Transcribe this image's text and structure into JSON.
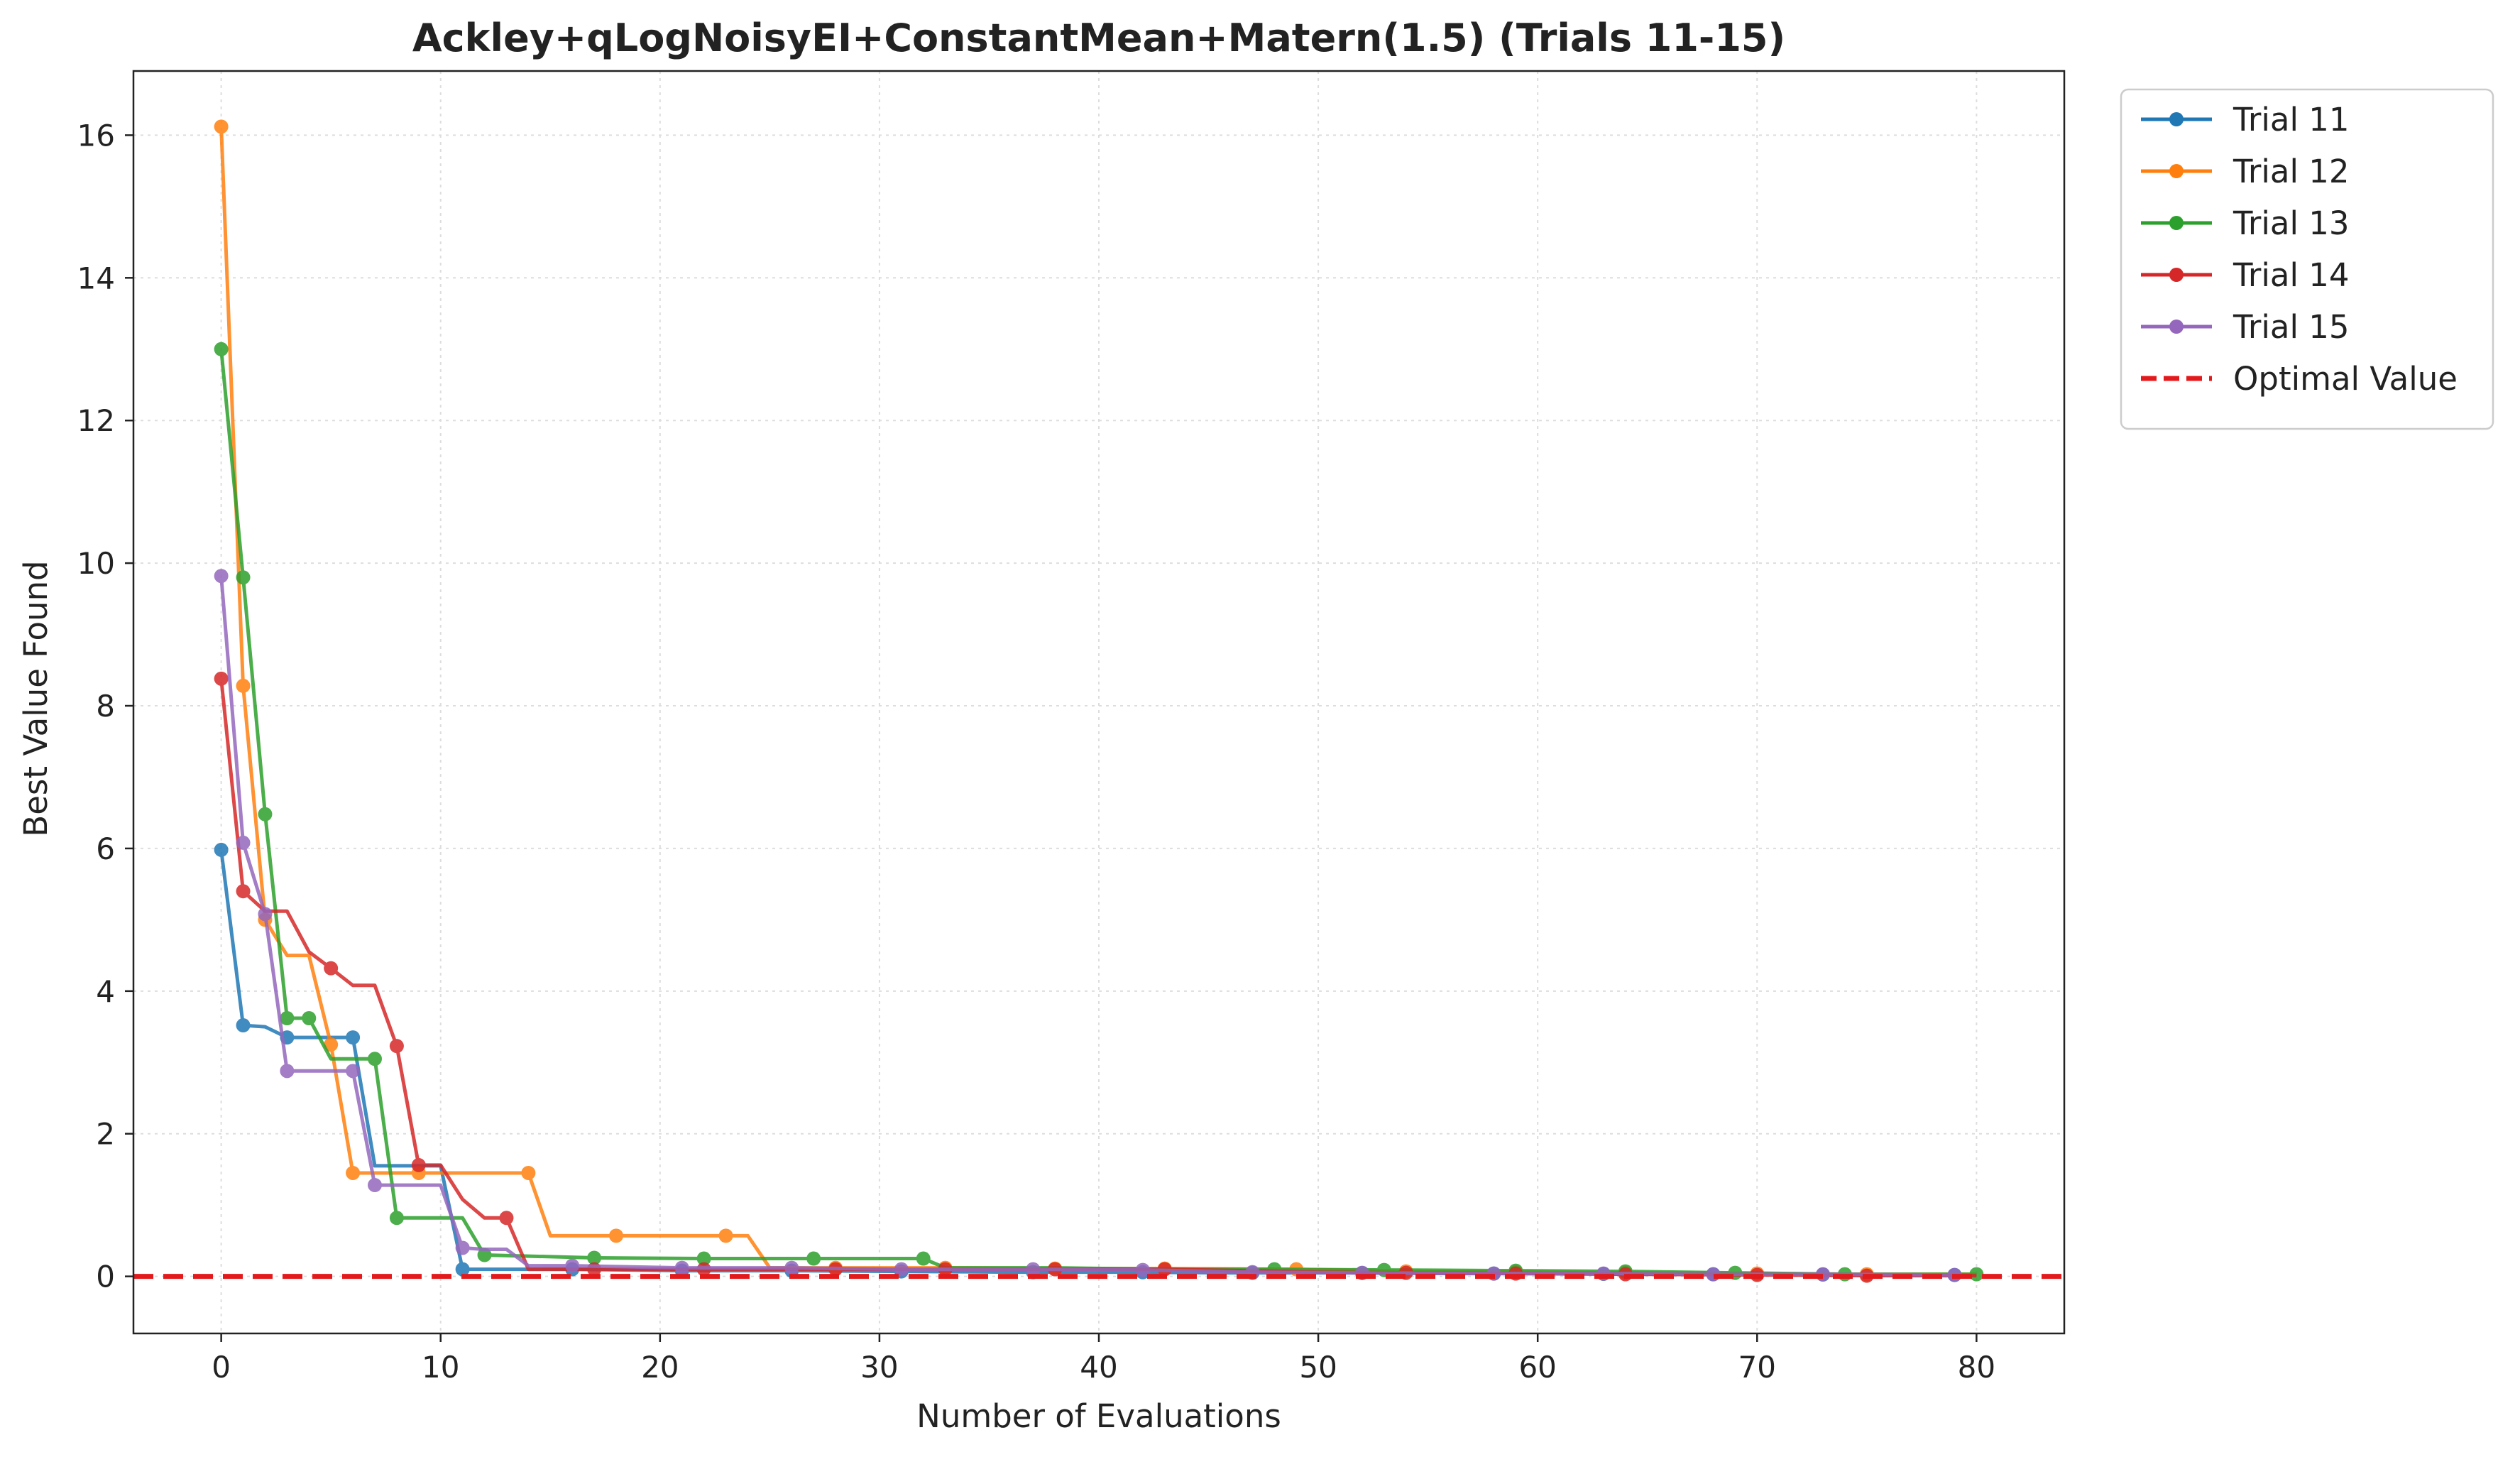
{
  "chart_data": {
    "type": "line",
    "title": "Ackley+qLogNoisyEI+ConstantMean+Matern(1.5) (Trials 11-15)",
    "xlabel": "Number of Evaluations",
    "ylabel": "Best Value Found",
    "xlim": [
      -4,
      84
    ],
    "ylim": [
      -0.8,
      16.9
    ],
    "xticks": [
      0,
      10,
      20,
      30,
      40,
      50,
      60,
      70,
      80
    ],
    "yticks": [
      0,
      2,
      4,
      6,
      8,
      10,
      12,
      14,
      16
    ],
    "grid": true,
    "legend_position": "outside-top-right",
    "series": [
      {
        "name": "Trial 11",
        "color": "#1f77b4",
        "x": [
          0,
          1,
          2,
          3,
          6,
          7,
          10,
          11,
          16,
          21,
          26,
          31,
          36,
          41,
          46,
          51,
          56,
          61,
          66,
          71,
          76,
          80
        ],
        "y": [
          5.98,
          3.52,
          3.5,
          3.35,
          3.35,
          1.55,
          1.55,
          0.1,
          0.1,
          0.08,
          0.08,
          0.07,
          0.06,
          0.06,
          0.05,
          0.05,
          0.04,
          0.04,
          0.03,
          0.03,
          0.02,
          0.02
        ],
        "markers": [
          0,
          1,
          3,
          6,
          11,
          16,
          21,
          26,
          31,
          37,
          42,
          47,
          52,
          58,
          63,
          68,
          73,
          79
        ]
      },
      {
        "name": "Trial 12",
        "color": "#ff7f0e",
        "x": [
          0,
          1,
          2,
          3,
          4,
          5,
          6,
          9,
          14,
          15,
          18,
          23,
          24,
          25,
          28,
          33,
          38,
          43,
          49,
          54,
          59,
          64,
          70,
          75,
          80
        ],
        "y": [
          16.12,
          8.28,
          5.0,
          4.5,
          4.5,
          3.25,
          1.45,
          1.45,
          1.45,
          0.57,
          0.57,
          0.57,
          0.57,
          0.12,
          0.12,
          0.12,
          0.11,
          0.11,
          0.1,
          0.07,
          0.06,
          0.05,
          0.04,
          0.03,
          0.03
        ],
        "markers": [
          0,
          1,
          2,
          5,
          6,
          9,
          14,
          18,
          23,
          28,
          33,
          38,
          43,
          49,
          54,
          59,
          64,
          70,
          75
        ]
      },
      {
        "name": "Trial 13",
        "color": "#2ca02c",
        "x": [
          0,
          1,
          2,
          3,
          4,
          5,
          7,
          8,
          11,
          12,
          17,
          22,
          27,
          32,
          33,
          38,
          43,
          48,
          53,
          59,
          64,
          69,
          74,
          80
        ],
        "y": [
          13.0,
          9.8,
          6.48,
          3.62,
          3.62,
          3.05,
          3.05,
          0.82,
          0.82,
          0.3,
          0.26,
          0.25,
          0.25,
          0.25,
          0.12,
          0.12,
          0.1,
          0.1,
          0.09,
          0.08,
          0.07,
          0.05,
          0.03,
          0.03
        ],
        "markers": [
          0,
          1,
          2,
          3,
          4,
          7,
          8,
          12,
          17,
          22,
          27,
          32,
          48,
          53,
          59,
          64,
          69,
          74,
          80
        ]
      },
      {
        "name": "Trial 14",
        "color": "#d62728",
        "x": [
          0,
          1,
          2,
          3,
          4,
          5,
          6,
          7,
          8,
          9,
          10,
          11,
          12,
          13,
          14,
          20,
          28,
          33,
          38,
          43,
          50,
          54,
          59,
          64,
          70,
          75,
          80
        ],
        "y": [
          8.38,
          5.4,
          5.12,
          5.12,
          4.55,
          4.32,
          4.08,
          4.08,
          3.23,
          1.56,
          1.56,
          1.08,
          0.82,
          0.82,
          0.1,
          0.1,
          0.1,
          0.1,
          0.1,
          0.1,
          0.06,
          0.05,
          0.04,
          0.03,
          0.02,
          0.01,
          0.01
        ],
        "markers": [
          0,
          1,
          5,
          8,
          9,
          13,
          17,
          22,
          28,
          33,
          38,
          43,
          54,
          59,
          64,
          70,
          75
        ]
      },
      {
        "name": "Trial 15",
        "color": "#9467bd",
        "x": [
          0,
          1,
          2,
          3,
          6,
          7,
          10,
          11,
          12,
          13,
          14,
          16,
          21,
          26,
          31,
          37,
          42,
          47,
          52,
          58,
          63,
          68,
          73,
          79
        ],
        "y": [
          9.82,
          6.08,
          5.08,
          2.88,
          2.88,
          1.28,
          1.28,
          0.4,
          0.38,
          0.38,
          0.15,
          0.15,
          0.12,
          0.12,
          0.1,
          0.1,
          0.09,
          0.06,
          0.05,
          0.04,
          0.04,
          0.03,
          0.03,
          0.02
        ],
        "markers": [
          0,
          1,
          2,
          3,
          6,
          7,
          11,
          16,
          21,
          26,
          31,
          37,
          42,
          47,
          52,
          58,
          63,
          68,
          73,
          79
        ]
      }
    ],
    "reference_line": {
      "name": "Optimal Value",
      "y": 0,
      "color": "#e31a1c",
      "style": "dashed"
    }
  }
}
